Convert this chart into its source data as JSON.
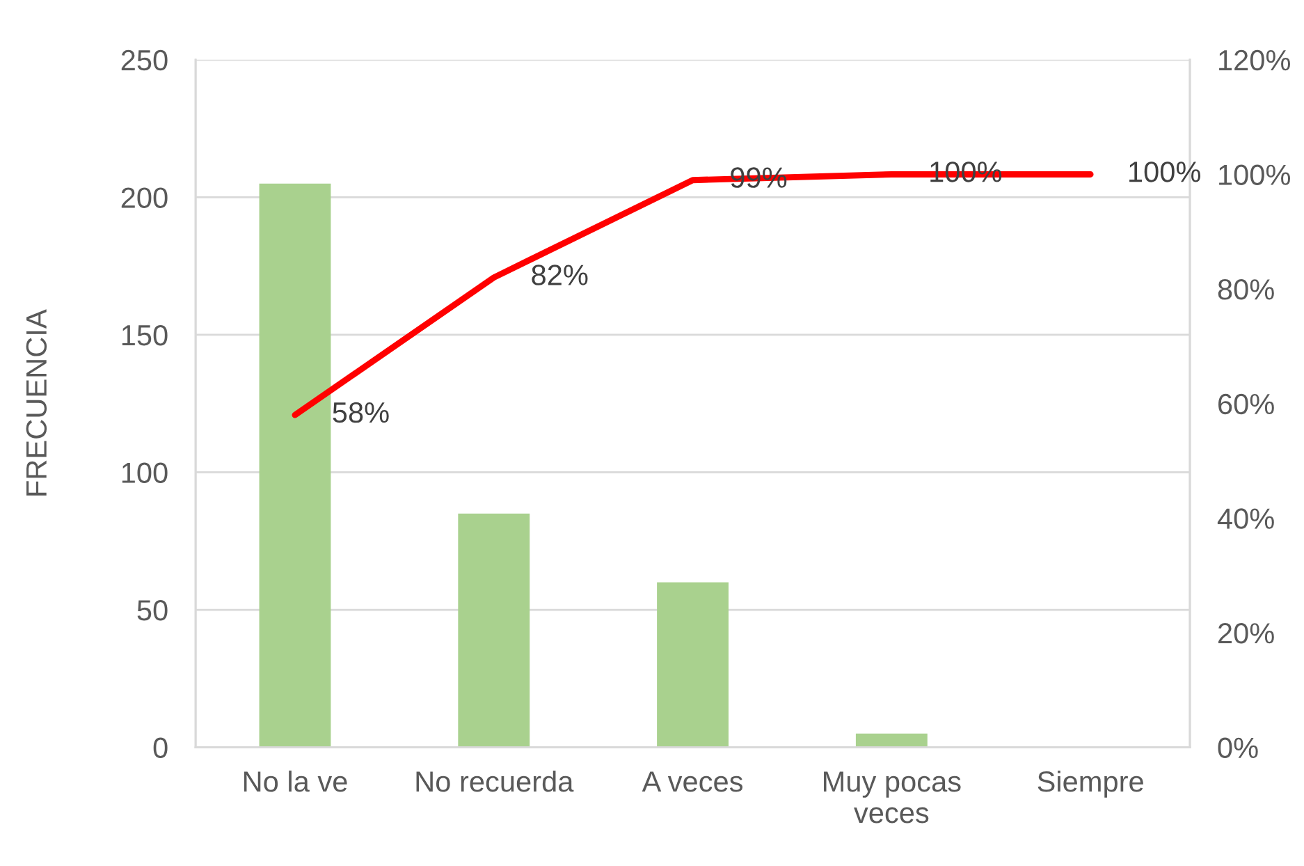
{
  "chart_data": {
    "type": "bar",
    "ylabel": "FRECUENCIA",
    "categories": [
      "No la ve",
      "No recuerda",
      "A veces",
      "Muy pocas veces",
      "Siempre"
    ],
    "series": [
      {
        "color": "#a9d18e",
        "values": [
          205,
          85,
          60,
          5,
          0
        ]
      },
      {
        "type": "line",
        "axis": "y2",
        "color": "#ff0000",
        "line_style": "solid",
        "values": [
          58,
          82,
          99,
          100,
          100
        ],
        "value_labels": [
          "58%",
          "82%",
          "99%",
          "100%",
          "100%"
        ]
      }
    ],
    "ylim": [
      0,
      250
    ],
    "yticks": [
      0,
      50,
      100,
      150,
      200,
      250
    ],
    "y2lim": [
      0,
      120
    ],
    "y2ticks": [
      {
        "value": 0,
        "label": "0%"
      },
      {
        "value": 20,
        "label": "20%"
      },
      {
        "value": 40,
        "label": "40%"
      },
      {
        "value": 60,
        "label": "60%"
      },
      {
        "value": 80,
        "label": "80%"
      },
      {
        "value": 100,
        "label": "100%"
      },
      {
        "value": 120,
        "label": "120%"
      }
    ],
    "grid": "y"
  }
}
